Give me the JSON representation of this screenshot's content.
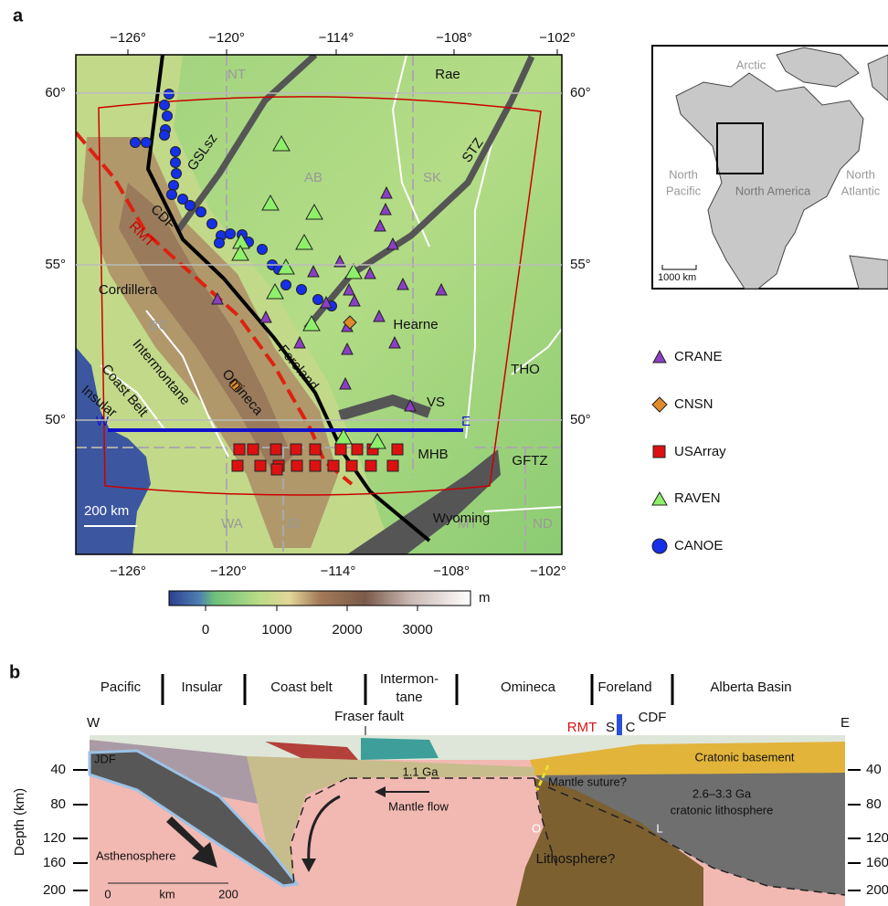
{
  "panel_a": {
    "label": "a",
    "lon_ticks": [
      "−126°",
      "−120°",
      "−114°",
      "−108°",
      "−102°"
    ],
    "lat_ticks": [
      "60°",
      "55°",
      "50°"
    ],
    "provinces": [
      "NT",
      "AB",
      "SK",
      "BC",
      "WA",
      "ID",
      "MT",
      "ND"
    ],
    "features": {
      "rae": "Rae",
      "hearne": "Hearne",
      "tho": "THO",
      "vs": "VS",
      "mhb": "MHB",
      "gftz": "GFTZ",
      "wyoming": "Wyoming",
      "cordillera": "Cordillera",
      "intermontane": "Intermontane",
      "omineca": "Omineca",
      "foreland": "Foreland",
      "coast_belt": "Coast Belt",
      "insular": "Insular",
      "cdf": "CDF",
      "rmt": "RMT",
      "gslsz": "GSLsz",
      "stz": "STZ"
    },
    "profile": [
      "W",
      "E"
    ],
    "scale": "200 km",
    "inset": {
      "arctic": "Arctic",
      "north_pacific": [
        "North",
        "Pacific"
      ],
      "north_america": "North America",
      "north_atlantic": [
        "North",
        "Atlantic"
      ],
      "scale": "1000 km"
    },
    "legend": [
      "CRANE",
      "CNSN",
      "USArray",
      "RAVEN",
      "CANOE"
    ],
    "colorbar": {
      "ticks": [
        "0",
        "1000",
        "2000",
        "3000"
      ],
      "unit": "m"
    }
  },
  "panel_b": {
    "label": "b",
    "terranes": [
      [
        "Pacific"
      ],
      [
        "Insular"
      ],
      [
        "Coast belt"
      ],
      [
        "Intermon-",
        "tane"
      ],
      [
        "Omineca"
      ],
      [
        "Foreland"
      ],
      [
        "Alberta Basin"
      ]
    ],
    "ends": [
      "W",
      "E"
    ],
    "fraser_fault": "Fraser fault",
    "rmt": "RMT",
    "s": "S",
    "c": "C",
    "cdf": "CDF",
    "depth_label": "Depth (km)",
    "depth_ticks": [
      40,
      80,
      120,
      160,
      200
    ],
    "units": {
      "jdf": "JDF",
      "asthenosphere": "Asthenosphere",
      "ga11": "1.1 Ga",
      "mantle_flow": "Mantle flow",
      "mantle_suture": "Mantle suture?",
      "ga26": "2.6–3.3 Ga",
      "cratonic_lithosphere": "cratonic lithosphere",
      "cratonic_basement": "Cratonic basement",
      "o": "O",
      "l": "L",
      "lithosphere": "Lithosphere?"
    },
    "scale": [
      "0",
      "km",
      "200"
    ]
  }
}
